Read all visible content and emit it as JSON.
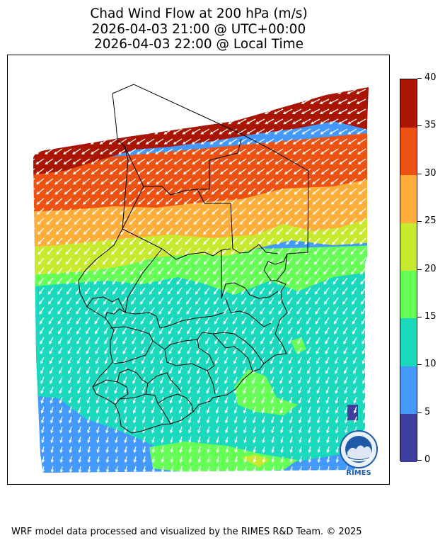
{
  "title": {
    "line1": "Chad Wind Flow at 200 hPa (m/s)",
    "line2": "2026-04-03 21:00 @ UTC+00:00",
    "line3": "2026-04-03 22:00 @ Local Time"
  },
  "colorbar": {
    "ticks": [
      "0",
      "5",
      "10",
      "15",
      "20",
      "25",
      "30",
      "35",
      "40"
    ],
    "colors": [
      "#3f3fa0",
      "#4499ff",
      "#1ad9bd",
      "#66ff55",
      "#c8ea2e",
      "#ffae3a",
      "#ee5212",
      "#a91500"
    ]
  },
  "footer": "WRF model data processed and visualized by the RIMES R&D Team. © 2025",
  "logo": {
    "text": "RIMES",
    "icon": "rimes-globe-icon"
  },
  "wind": {
    "direction": "north-easterly flow, arrows pointing south-west",
    "strongest": "north",
    "weakest": "south"
  }
}
